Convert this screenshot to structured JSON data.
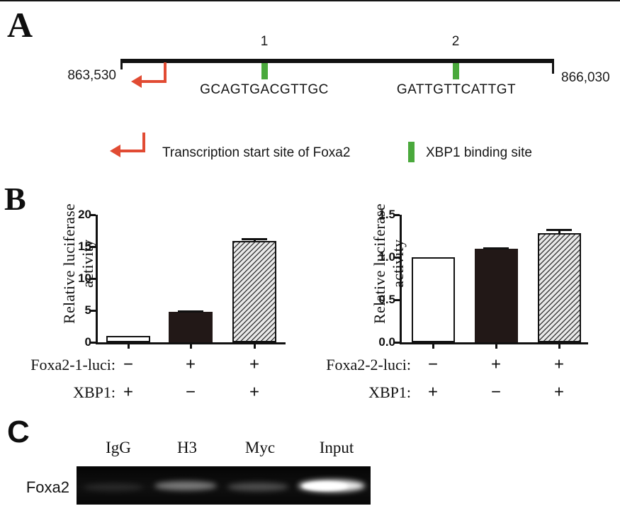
{
  "panelA": {
    "label": "A",
    "coord_left": "863,530",
    "coord_right": "866,030",
    "sites": [
      {
        "number": "1",
        "sequence": "GCAGTGACGTTGC"
      },
      {
        "number": "2",
        "sequence": "GATTGTTCATTGT"
      }
    ],
    "legend": {
      "tss_label": "Transcription start site of Foxa2",
      "xbp1_label": "XBP1 binding site"
    },
    "colors": {
      "arrow_red": "#e14b33",
      "site_green": "#4aa93c"
    }
  },
  "panelB": {
    "label": "B"
  },
  "chart_data": [
    {
      "type": "bar",
      "title": "",
      "ylabel": "Relative luciferase activity",
      "xlabel": "",
      "ylim": [
        0,
        20
      ],
      "yticks": [
        "0",
        "5",
        "10",
        "15",
        "20"
      ],
      "categories": [
        "XBP1 alone",
        "Foxa2-1-luci alone",
        "Foxa2-1-luci + XBP1"
      ],
      "values": [
        1.0,
        4.8,
        15.9
      ],
      "errors": [
        0,
        0.2,
        0.45
      ],
      "bar_styles": [
        "white",
        "black",
        "hatched"
      ],
      "grid": false,
      "legend_position": "none",
      "condition_rows": [
        {
          "label": "Foxa2-1-luci:",
          "symbols": [
            "−",
            "+",
            "+"
          ]
        },
        {
          "label": "XBP1:",
          "symbols": [
            "+",
            "−",
            "+"
          ]
        }
      ]
    },
    {
      "type": "bar",
      "title": "",
      "ylabel": "Relative luciferase activity",
      "xlabel": "",
      "ylim": [
        0,
        1.5
      ],
      "yticks": [
        "0.0",
        "0.5",
        "1.0",
        "1.5"
      ],
      "categories": [
        "XBP1 alone",
        "Foxa2-2-luci alone",
        "Foxa2-2-luci + XBP1"
      ],
      "values": [
        1.0,
        1.1,
        1.28
      ],
      "errors": [
        0,
        0.02,
        0.055
      ],
      "bar_styles": [
        "white",
        "black",
        "hatched"
      ],
      "grid": false,
      "legend_position": "none",
      "condition_rows": [
        {
          "label": "Foxa2-2-luci:",
          "symbols": [
            "−",
            "+",
            "+"
          ]
        },
        {
          "label": "XBP1:",
          "symbols": [
            "+",
            "−",
            "+"
          ]
        }
      ]
    }
  ],
  "panelC": {
    "label": "C",
    "lanes": [
      "IgG",
      "H3",
      "Myc",
      "Input"
    ],
    "row_label": "Foxa2",
    "band_intensities": [
      0.1,
      0.45,
      0.26,
      0.95
    ]
  }
}
